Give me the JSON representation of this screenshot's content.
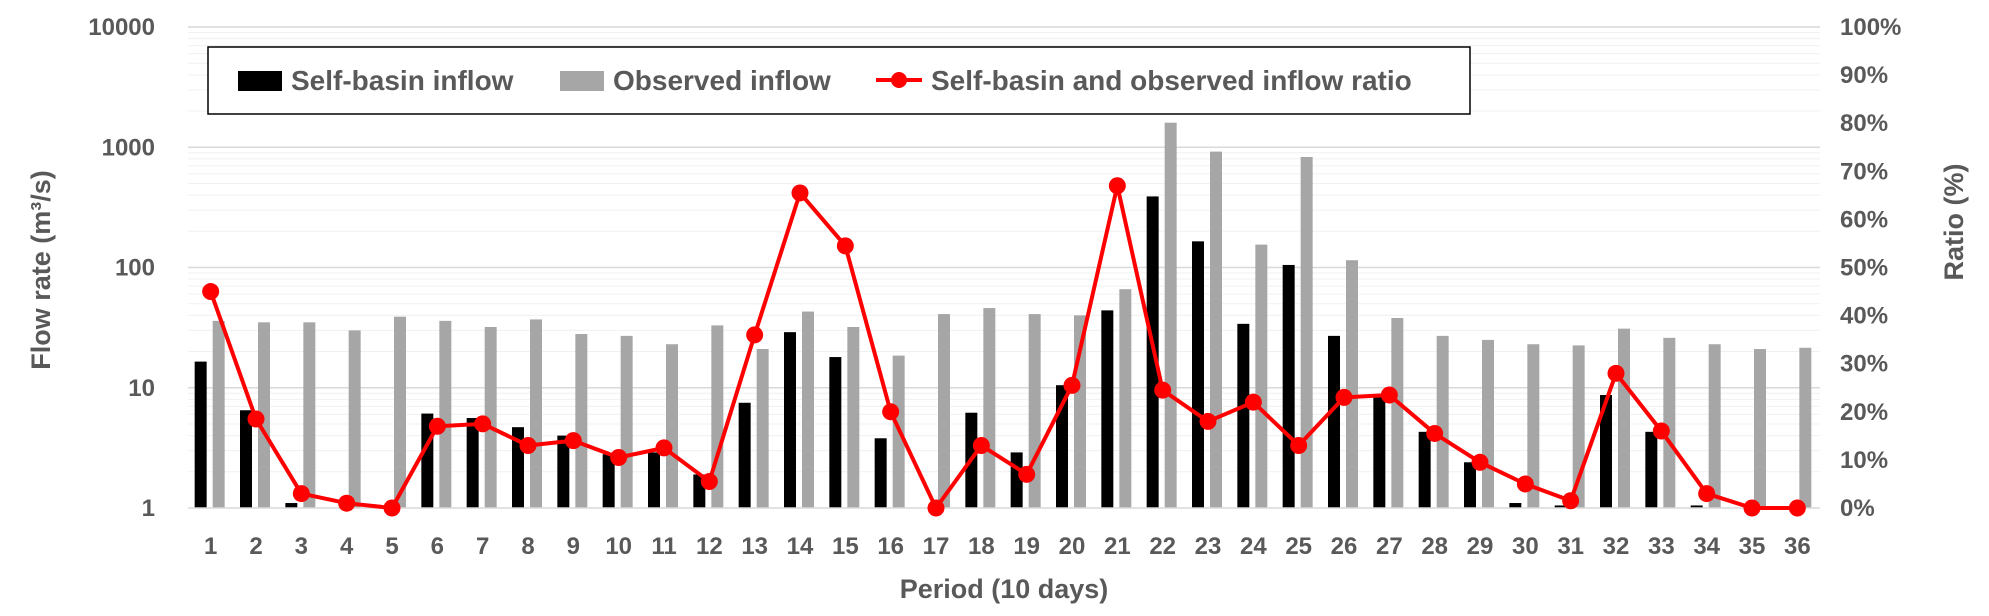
{
  "chart_data": {
    "type": "bar",
    "title": "",
    "xlabel": "Period (10 days)",
    "ylabel_left": "Flow rate (m³/s)",
    "ylabel_right": "Ratio (%)",
    "y_left_scale": "log",
    "y_left_range": [
      1,
      10000
    ],
    "y_left_ticks": [
      "1",
      "10",
      "100",
      "1000",
      "10000"
    ],
    "y_right_range": [
      0,
      100
    ],
    "y_right_ticks": [
      "0%",
      "10%",
      "20%",
      "30%",
      "40%",
      "50%",
      "60%",
      "70%",
      "80%",
      "90%",
      "100%"
    ],
    "categories": [
      "1",
      "2",
      "3",
      "4",
      "5",
      "6",
      "7",
      "8",
      "9",
      "10",
      "11",
      "12",
      "13",
      "14",
      "15",
      "16",
      "17",
      "18",
      "19",
      "20",
      "21",
      "22",
      "23",
      "24",
      "25",
      "26",
      "27",
      "28",
      "29",
      "30",
      "31",
      "32",
      "33",
      "34",
      "35",
      "36"
    ],
    "legend_position": "top-left",
    "grid": true,
    "series": [
      {
        "name": "Self-basin inflow",
        "kind": "bar",
        "axis": "left",
        "color": "#000000",
        "values": [
          16.5,
          6.5,
          1.1,
          1.0,
          1.0,
          6.1,
          5.6,
          4.7,
          4.0,
          2.8,
          2.9,
          1.9,
          7.5,
          29,
          18,
          3.8,
          1.0,
          6.2,
          2.9,
          10.5,
          44,
          390,
          165,
          34,
          105,
          27,
          8.8,
          4.3,
          2.4,
          1.1,
          1.05,
          8.7,
          4.3,
          1.05,
          1.0,
          1.0
        ]
      },
      {
        "name": "Observed inflow",
        "kind": "bar",
        "axis": "left",
        "color": "#a6a6a6",
        "values": [
          36,
          35,
          35,
          30,
          39,
          36,
          32,
          37,
          28,
          27,
          23,
          33,
          21,
          43,
          32,
          18.5,
          41,
          46,
          41,
          40,
          66,
          1600,
          920,
          155,
          830,
          115,
          38,
          27,
          25,
          23,
          22.5,
          31,
          26,
          23,
          21,
          21.5
        ]
      },
      {
        "name": "Self-basin and observed inflow ratio",
        "kind": "line",
        "axis": "right",
        "color": "#ff0000",
        "values": [
          45,
          18.5,
          3,
          1,
          0,
          17,
          17.5,
          13,
          14,
          10.5,
          12.5,
          5.5,
          36,
          65.5,
          54.5,
          20,
          0,
          13,
          7,
          25.5,
          67,
          24.5,
          18,
          22,
          13,
          23,
          23.5,
          15.5,
          9.5,
          5,
          1.5,
          28,
          16,
          3,
          0,
          0
        ]
      }
    ]
  }
}
